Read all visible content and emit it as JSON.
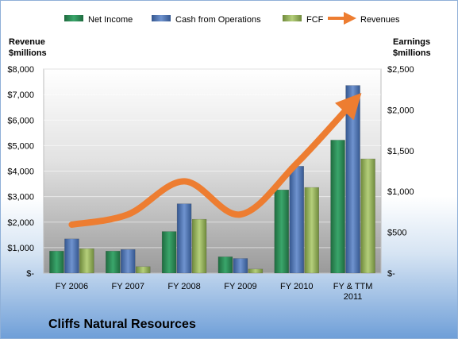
{
  "chart_data": {
    "type": "bar",
    "title": "Cliffs Natural Resources",
    "categories": [
      "FY 2006",
      "FY 2007",
      "FY 2008",
      "FY 2009",
      "FY 2010",
      "FY & TTM 2011"
    ],
    "y_left_label": [
      "Revenue",
      "$millions"
    ],
    "y_right_label": [
      "Earnings",
      "$millions"
    ],
    "y_left_ticks": [
      "$-",
      "$1,000",
      "$2,000",
      "$3,000",
      "$4,000",
      "$5,000",
      "$6,000",
      "$7,000",
      "$8,000"
    ],
    "y_right_ticks": [
      "$-",
      "$500",
      "$1,000",
      "$1,500",
      "$2,000",
      "$2,500"
    ],
    "y_left_range": [
      0,
      8000
    ],
    "y_right_range": [
      0,
      2500
    ],
    "legend_position": "top",
    "series": [
      {
        "name": "Net Income",
        "axis": "right",
        "color": "#2e8b57",
        "values": [
          270,
          270,
          510,
          200,
          1020,
          1630
        ]
      },
      {
        "name": "Cash from Operations",
        "axis": "right",
        "color": "#4f76b8",
        "values": [
          420,
          290,
          850,
          180,
          1310,
          2300
        ]
      },
      {
        "name": "FCF",
        "axis": "right",
        "color": "#9bbb59",
        "values": [
          300,
          80,
          660,
          50,
          1050,
          1400
        ]
      },
      {
        "name": "Revenues",
        "axis": "left",
        "type": "line",
        "color": "#ed7d31",
        "values": [
          1900,
          2300,
          3600,
          2300,
          4300,
          6700
        ]
      }
    ]
  }
}
